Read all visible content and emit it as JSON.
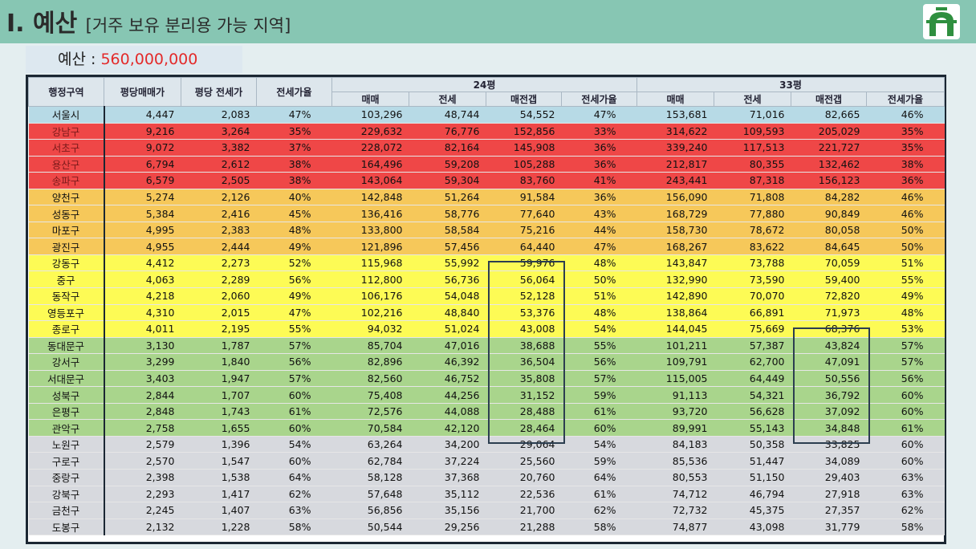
{
  "header": {
    "title": "I. 예산",
    "subtitle": "[거주 보유 분리용 가능 지역]",
    "logo_icon": "gate-logo-icon"
  },
  "budget": {
    "label": "예산 : ",
    "value": "560,000,000"
  },
  "table": {
    "col_district": "행정구역",
    "col_price_per_pyeong": "평당매매가",
    "col_jeonse_per_pyeong": "평당 전세가",
    "col_jeonse_rate": "전세가율",
    "group24": "24평",
    "group33": "33평",
    "sub": [
      "매매",
      "전세",
      "매전갭",
      "전세가율"
    ],
    "rows": [
      [
        "서울시",
        "4,447",
        "2,083",
        "47%",
        "103,296",
        "48,744",
        "54,552",
        "47%",
        "153,681",
        "71,016",
        "82,665",
        "46%"
      ],
      [
        "강남구",
        "9,216",
        "3,264",
        "35%",
        "229,632",
        "76,776",
        "152,856",
        "33%",
        "314,622",
        "109,593",
        "205,029",
        "35%"
      ],
      [
        "서초구",
        "9,072",
        "3,382",
        "37%",
        "228,072",
        "82,164",
        "145,908",
        "36%",
        "339,240",
        "117,513",
        "221,727",
        "35%"
      ],
      [
        "용산구",
        "6,794",
        "2,612",
        "38%",
        "164,496",
        "59,208",
        "105,288",
        "36%",
        "212,817",
        "80,355",
        "132,462",
        "38%"
      ],
      [
        "송파구",
        "6,579",
        "2,505",
        "38%",
        "143,064",
        "59,304",
        "83,760",
        "41%",
        "243,441",
        "87,318",
        "156,123",
        "36%"
      ],
      [
        "양천구",
        "5,274",
        "2,126",
        "40%",
        "142,848",
        "51,264",
        "91,584",
        "36%",
        "156,090",
        "71,808",
        "84,282",
        "46%"
      ],
      [
        "성동구",
        "5,384",
        "2,416",
        "45%",
        "136,416",
        "58,776",
        "77,640",
        "43%",
        "168,729",
        "77,880",
        "90,849",
        "46%"
      ],
      [
        "마포구",
        "4,995",
        "2,383",
        "48%",
        "133,800",
        "58,584",
        "75,216",
        "44%",
        "158,730",
        "78,672",
        "80,058",
        "50%"
      ],
      [
        "광진구",
        "4,955",
        "2,444",
        "49%",
        "121,896",
        "57,456",
        "64,440",
        "47%",
        "168,267",
        "83,622",
        "84,645",
        "50%"
      ],
      [
        "강동구",
        "4,412",
        "2,273",
        "52%",
        "115,968",
        "55,992",
        "59,976",
        "48%",
        "143,847",
        "73,788",
        "70,059",
        "51%"
      ],
      [
        "중구",
        "4,063",
        "2,289",
        "56%",
        "112,800",
        "56,736",
        "56,064",
        "50%",
        "132,990",
        "73,590",
        "59,400",
        "55%"
      ],
      [
        "동작구",
        "4,218",
        "2,060",
        "49%",
        "106,176",
        "54,048",
        "52,128",
        "51%",
        "142,890",
        "70,070",
        "72,820",
        "49%"
      ],
      [
        "영등포구",
        "4,310",
        "2,015",
        "47%",
        "102,216",
        "48,840",
        "53,376",
        "48%",
        "138,864",
        "66,891",
        "71,973",
        "48%"
      ],
      [
        "종로구",
        "4,011",
        "2,195",
        "55%",
        "94,032",
        "51,024",
        "43,008",
        "54%",
        "144,045",
        "75,669",
        "68,376",
        "53%"
      ],
      [
        "동대문구",
        "3,130",
        "1,787",
        "57%",
        "85,704",
        "47,016",
        "38,688",
        "55%",
        "101,211",
        "57,387",
        "43,824",
        "57%"
      ],
      [
        "강서구",
        "3,299",
        "1,840",
        "56%",
        "82,896",
        "46,392",
        "36,504",
        "56%",
        "109,791",
        "62,700",
        "47,091",
        "57%"
      ],
      [
        "서대문구",
        "3,403",
        "1,947",
        "57%",
        "82,560",
        "46,752",
        "35,808",
        "57%",
        "115,005",
        "64,449",
        "50,556",
        "56%"
      ],
      [
        "성북구",
        "2,844",
        "1,707",
        "60%",
        "75,408",
        "44,256",
        "31,152",
        "59%",
        "91,113",
        "54,321",
        "36,792",
        "60%"
      ],
      [
        "은평구",
        "2,848",
        "1,743",
        "61%",
        "72,576",
        "44,088",
        "28,488",
        "61%",
        "93,720",
        "56,628",
        "37,092",
        "60%"
      ],
      [
        "관악구",
        "2,758",
        "1,655",
        "60%",
        "70,584",
        "42,120",
        "28,464",
        "60%",
        "89,991",
        "55,143",
        "34,848",
        "61%"
      ],
      [
        "노원구",
        "2,579",
        "1,396",
        "54%",
        "63,264",
        "34,200",
        "29,064",
        "54%",
        "84,183",
        "50,358",
        "33,825",
        "60%"
      ],
      [
        "구로구",
        "2,570",
        "1,547",
        "60%",
        "62,784",
        "37,224",
        "25,560",
        "59%",
        "85,536",
        "51,447",
        "34,089",
        "60%"
      ],
      [
        "중랑구",
        "2,398",
        "1,538",
        "64%",
        "58,128",
        "37,368",
        "20,760",
        "64%",
        "80,553",
        "51,150",
        "29,403",
        "63%"
      ],
      [
        "강북구",
        "2,293",
        "1,417",
        "62%",
        "57,648",
        "35,112",
        "22,536",
        "61%",
        "74,712",
        "46,794",
        "27,918",
        "63%"
      ],
      [
        "금천구",
        "2,245",
        "1,407",
        "63%",
        "56,856",
        "35,156",
        "21,700",
        "62%",
        "72,732",
        "45,375",
        "27,357",
        "62%"
      ],
      [
        "도봉구",
        "2,132",
        "1,228",
        "58%",
        "50,544",
        "29,256",
        "21,288",
        "58%",
        "74,877",
        "43,098",
        "31,779",
        "58%"
      ]
    ],
    "row_groups": [
      0,
      1,
      1,
      1,
      1,
      2,
      2,
      2,
      2,
      3,
      3,
      3,
      3,
      3,
      4,
      4,
      4,
      4,
      4,
      4,
      5,
      5,
      5,
      5,
      5,
      5
    ],
    "group_colors": [
      "#b7dae6",
      "#ef4747",
      "#f6c85a",
      "#fdfb55",
      "#a9d58c",
      "#d7d9de"
    ]
  }
}
